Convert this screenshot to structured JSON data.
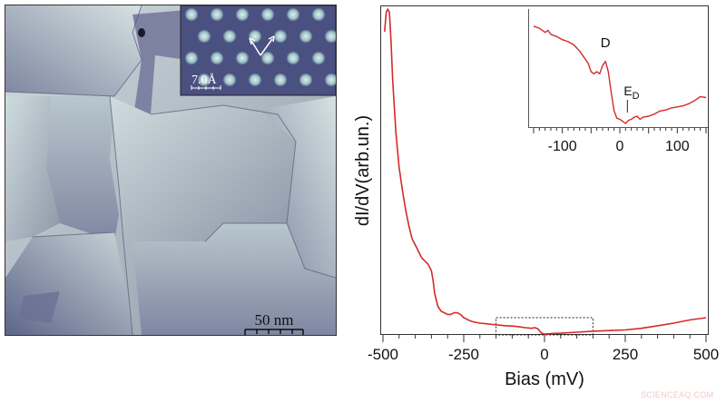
{
  "figure": {
    "left_panel": {
      "type": "STM topography image",
      "scale_bar_label": "50 nm",
      "inset": {
        "type": "atomic resolution STM image",
        "scale_bar_label": "7.0Å",
        "arrows": "two lattice-direction arrows"
      }
    },
    "right_panel": {
      "xlabel": "Bias (mV)",
      "ylabel": "dI/dV(arb.un.)"
    },
    "watermark": "SCIENCEAQ.COM"
  },
  "chart_data": [
    {
      "type": "line",
      "title": "",
      "xlabel": "Bias (mV)",
      "ylabel": "dI/dV(arb.un.)",
      "xlim": [
        -500,
        500
      ],
      "ylim": [
        0,
        1
      ],
      "x_ticks": [
        -500,
        -250,
        0,
        250,
        500
      ],
      "y_ticks": [],
      "grid": false,
      "line_color": "#d42a2a",
      "series": [
        {
          "name": "dI/dV spectrum",
          "x": [
            -495,
            -490,
            -485,
            -480,
            -475,
            -470,
            -460,
            -450,
            -440,
            -430,
            -420,
            -410,
            -400,
            -390,
            -380,
            -370,
            -360,
            -350,
            -345,
            -340,
            -330,
            -320,
            -310,
            -300,
            -290,
            -280,
            -270,
            -260,
            -250,
            -240,
            -230,
            -220,
            -200,
            -180,
            -160,
            -140,
            -120,
            -100,
            -80,
            -60,
            -40,
            -30,
            -20,
            -10,
            0,
            10,
            25,
            50,
            100,
            150,
            200,
            250,
            300,
            350,
            400,
            450,
            500
          ],
          "y": [
            0.93,
            0.99,
            1.0,
            0.99,
            0.9,
            0.78,
            0.62,
            0.51,
            0.44,
            0.38,
            0.33,
            0.29,
            0.27,
            0.25,
            0.23,
            0.22,
            0.21,
            0.19,
            0.16,
            0.12,
            0.08,
            0.065,
            0.06,
            0.055,
            0.055,
            0.06,
            0.06,
            0.055,
            0.045,
            0.04,
            0.035,
            0.032,
            0.028,
            0.026,
            0.024,
            0.022,
            0.02,
            0.019,
            0.017,
            0.014,
            0.012,
            0.014,
            0.01,
            -0.002,
            -0.006,
            -0.005,
            -0.004,
            -0.003,
            0.0,
            0.003,
            0.005,
            0.007,
            0.012,
            0.02,
            0.028,
            0.038,
            0.045
          ]
        }
      ],
      "annotations": [
        {
          "type": "dotted_box",
          "x_range": [
            -150,
            150
          ],
          "label": "zoom region"
        }
      ]
    },
    {
      "type": "line",
      "title": "inset",
      "xlabel": "",
      "ylabel": "",
      "xlim": [
        -150,
        150
      ],
      "x_ticks": [
        -100,
        0,
        100
      ],
      "grid": false,
      "line_color": "#d42a2a",
      "series": [
        {
          "name": "dI/dV zoom",
          "x": [
            -150,
            -140,
            -130,
            -125,
            -120,
            -110,
            -100,
            -90,
            -80,
            -70,
            -60,
            -55,
            -50,
            -45,
            -40,
            -35,
            -30,
            -25,
            -20,
            -15,
            -10,
            -5,
            0,
            5,
            10,
            15,
            20,
            25,
            30,
            35,
            40,
            50,
            60,
            70,
            80,
            90,
            100,
            110,
            120,
            130,
            140,
            150
          ],
          "y": [
            0.94,
            0.92,
            0.88,
            0.9,
            0.86,
            0.84,
            0.81,
            0.79,
            0.76,
            0.7,
            0.62,
            0.58,
            0.5,
            0.48,
            0.5,
            0.48,
            0.56,
            0.6,
            0.5,
            0.3,
            0.12,
            0.05,
            0.04,
            0.02,
            0.0,
            0.03,
            0.04,
            0.06,
            0.07,
            0.04,
            0.06,
            0.07,
            0.09,
            0.12,
            0.13,
            0.15,
            0.16,
            0.17,
            0.19,
            0.22,
            0.26,
            0.25
          ]
        }
      ],
      "annotations": [
        {
          "label": "D",
          "x": -25,
          "note": "peak label"
        },
        {
          "label": "E_D",
          "x": 10,
          "note": "Dirac point marker with vertical tick"
        }
      ]
    }
  ]
}
